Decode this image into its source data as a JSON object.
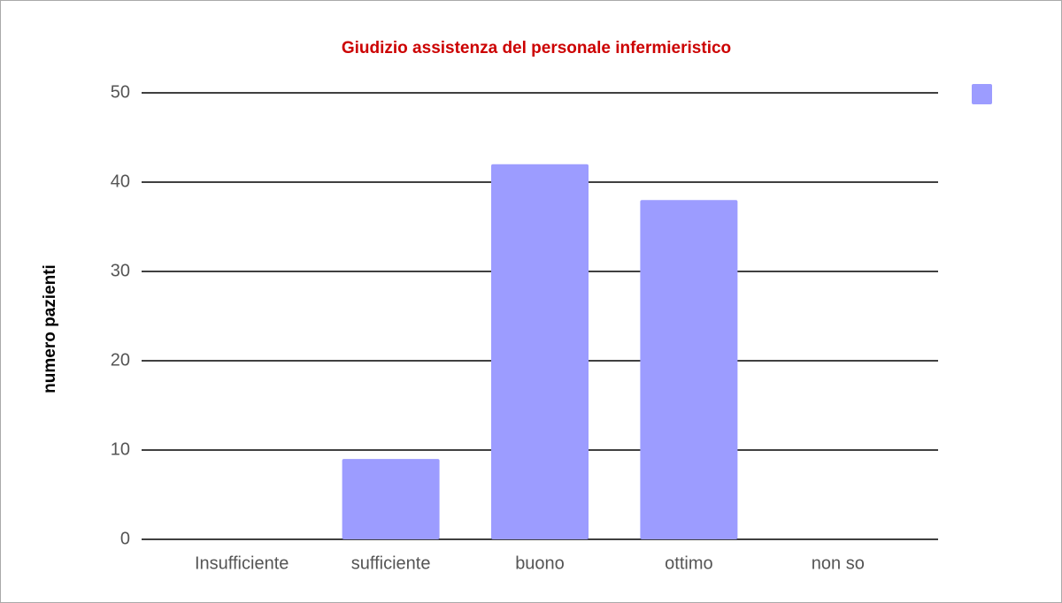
{
  "chart_data": {
    "type": "bar",
    "title": "Giudizio assistenza del personale infermieristico",
    "y_label": "numero pazienti",
    "categories": [
      "Insufficiente",
      "sufficiente",
      "buono",
      "ottimo",
      "non so"
    ],
    "values": [
      0,
      9,
      42,
      38,
      0
    ],
    "color": "#9c9cff",
    "ylim": [
      0,
      50
    ],
    "yticks": [
      0,
      10,
      20,
      30,
      40,
      50
    ],
    "grid": true,
    "legend": "top-right"
  }
}
